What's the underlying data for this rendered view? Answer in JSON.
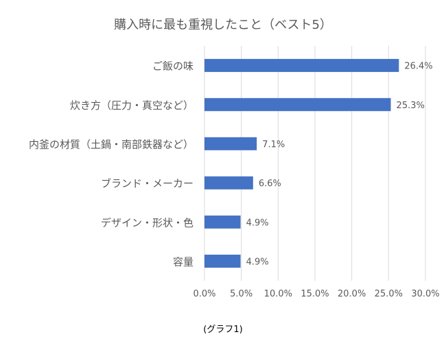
{
  "chart_data": {
    "type": "bar",
    "orientation": "horizontal",
    "title": "購入時に最も重視したこと（ベスト5）",
    "caption": "(グラフ1)",
    "categories": [
      "ご飯の味",
      "炊き方（圧力・真空など）",
      "内釜の材質（土鍋・南部鉄器など）",
      "ブランド・メーカー",
      "デザイン・形状・色",
      "容量"
    ],
    "values": [
      26.4,
      25.3,
      7.1,
      6.6,
      4.9,
      4.9
    ],
    "value_labels": [
      "26.4%",
      "25.3%",
      "7.1%",
      "6.6%",
      "4.9%",
      "4.9%"
    ],
    "x_ticks": [
      0,
      5,
      10,
      15,
      20,
      25,
      30
    ],
    "x_tick_labels": [
      "0.0%",
      "5.0%",
      "10.0%",
      "15.0%",
      "20.0%",
      "25.0%",
      "30.0%"
    ],
    "xlim": [
      0,
      30
    ],
    "xlabel": "",
    "ylabel": "",
    "grid": "vertical",
    "legend": "none",
    "colors": {
      "bar": "#4472c4",
      "grid": "#d9d9d9",
      "text": "#595959",
      "title": "#595959"
    }
  }
}
